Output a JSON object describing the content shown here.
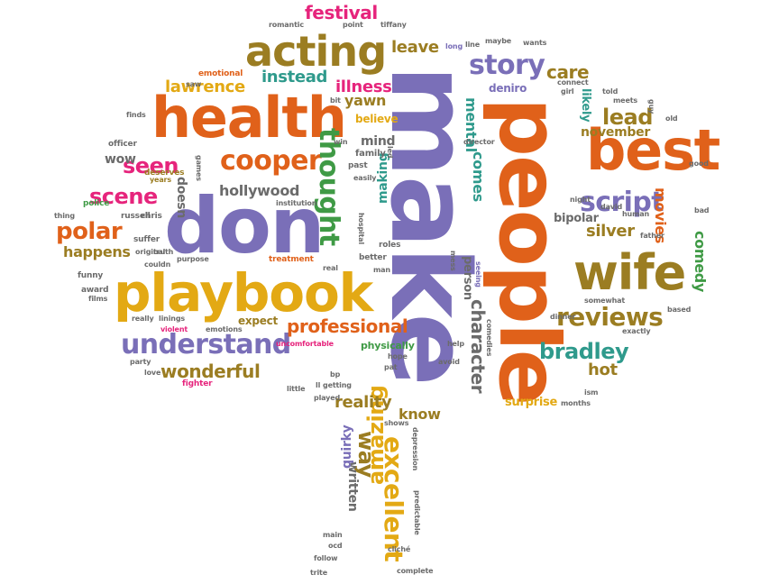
{
  "palette": {
    "orange": "#e0611a",
    "purple": "#7a6fb8",
    "gold": "#e3a914",
    "olive": "#9b7d22",
    "green": "#3f9a45",
    "pink": "#e6247c",
    "teal": "#2f9a8c",
    "gray": "#6b6b6b"
  },
  "words": [
    {
      "text": "make",
      "color": "purple"
    },
    {
      "text": "people",
      "color": "orange"
    },
    {
      "text": "don",
      "color": "purple"
    },
    {
      "text": "health",
      "color": "orange"
    },
    {
      "text": "playbook",
      "color": "gold"
    },
    {
      "text": "best",
      "color": "orange"
    },
    {
      "text": "wife",
      "color": "olive"
    },
    {
      "text": "acting",
      "color": "olive"
    },
    {
      "text": "cooper",
      "color": "orange"
    },
    {
      "text": "understand",
      "color": "purple"
    },
    {
      "text": "story",
      "color": "purple"
    },
    {
      "text": "script",
      "color": "purple"
    },
    {
      "text": "reviews",
      "color": "olive"
    },
    {
      "text": "thought",
      "color": "green"
    },
    {
      "text": "character",
      "color": "gray"
    },
    {
      "text": "polar",
      "color": "orange"
    },
    {
      "text": "seen",
      "color": "pink"
    },
    {
      "text": "scene",
      "color": "pink"
    },
    {
      "text": "wonderful",
      "color": "olive"
    },
    {
      "text": "professional",
      "color": "orange"
    },
    {
      "text": "bradley",
      "color": "teal"
    },
    {
      "text": "excellent",
      "color": "gold"
    },
    {
      "text": "amazing",
      "color": "gold"
    },
    {
      "text": "way",
      "color": "olive"
    },
    {
      "text": "lead",
      "color": "olive"
    },
    {
      "text": "festival",
      "color": "pink"
    },
    {
      "text": "instead",
      "color": "teal"
    },
    {
      "text": "lawrence",
      "color": "gold"
    },
    {
      "text": "illness",
      "color": "pink"
    },
    {
      "text": "leave",
      "color": "olive"
    },
    {
      "text": "care",
      "color": "olive"
    },
    {
      "text": "hollywood",
      "color": "gray"
    },
    {
      "text": "happens",
      "color": "olive"
    },
    {
      "text": "reality",
      "color": "olive"
    },
    {
      "text": "silver",
      "color": "olive"
    },
    {
      "text": "hot",
      "color": "olive"
    },
    {
      "text": "mental",
      "color": "teal"
    },
    {
      "text": "know",
      "color": "olive"
    },
    {
      "text": "movies",
      "color": "orange"
    },
    {
      "text": "comedy",
      "color": "green"
    },
    {
      "text": "november",
      "color": "olive"
    },
    {
      "text": "mind",
      "color": "gray"
    },
    {
      "text": "yawn",
      "color": "olive"
    },
    {
      "text": "comes",
      "color": "teal"
    },
    {
      "text": "making",
      "color": "teal"
    },
    {
      "text": "doesn",
      "color": "gray"
    },
    {
      "text": "written",
      "color": "gray"
    },
    {
      "text": "quirky",
      "color": "purple"
    },
    {
      "text": "person",
      "color": "gray"
    },
    {
      "text": "surprise",
      "color": "gold"
    },
    {
      "text": "likely",
      "color": "teal"
    },
    {
      "text": "bipolar",
      "color": "gray"
    },
    {
      "text": "wow",
      "color": "gray"
    },
    {
      "text": "believe",
      "color": "gold"
    },
    {
      "text": "deniro",
      "color": "purple"
    },
    {
      "text": "expect",
      "color": "olive"
    },
    {
      "text": "physically",
      "color": "green"
    },
    {
      "text": "emotional",
      "color": "orange"
    },
    {
      "text": "officer",
      "color": "gray"
    },
    {
      "text": "finds",
      "color": "gray"
    },
    {
      "text": "police",
      "color": "green"
    },
    {
      "text": "deserves",
      "color": "olive"
    },
    {
      "text": "years",
      "color": "olive"
    },
    {
      "text": "russell",
      "color": "gray"
    },
    {
      "text": "chris",
      "color": "gray"
    },
    {
      "text": "thing",
      "color": "gray"
    },
    {
      "text": "suffer",
      "color": "gray"
    },
    {
      "text": "original",
      "color": "gray"
    },
    {
      "text": "truth",
      "color": "gray"
    },
    {
      "text": "funny",
      "color": "gray"
    },
    {
      "text": "purpose",
      "color": "gray"
    },
    {
      "text": "award",
      "color": "gray"
    },
    {
      "text": "films",
      "color": "gray"
    },
    {
      "text": "couldn",
      "color": "gray"
    },
    {
      "text": "really",
      "color": "gray"
    },
    {
      "text": "linings",
      "color": "gray"
    },
    {
      "text": "emotions",
      "color": "gray"
    },
    {
      "text": "violent",
      "color": "pink"
    },
    {
      "text": "party",
      "color": "gray"
    },
    {
      "text": "love",
      "color": "gray"
    },
    {
      "text": "fighter",
      "color": "pink"
    },
    {
      "text": "romantic",
      "color": "gray"
    },
    {
      "text": "point",
      "color": "gray"
    },
    {
      "text": "tiffany",
      "color": "gray"
    },
    {
      "text": "long",
      "color": "purple"
    },
    {
      "text": "line",
      "color": "gray"
    },
    {
      "text": "maybe",
      "color": "gray"
    },
    {
      "text": "wants",
      "color": "gray"
    },
    {
      "text": "saw",
      "color": "gray"
    },
    {
      "text": "bit",
      "color": "gray"
    },
    {
      "text": "win",
      "color": "gray"
    },
    {
      "text": "games",
      "color": "gray"
    },
    {
      "text": "family",
      "color": "gray"
    },
    {
      "text": "led",
      "color": "gray"
    },
    {
      "text": "past",
      "color": "gray"
    },
    {
      "text": "easily",
      "color": "gray"
    },
    {
      "text": "institution",
      "color": "gray"
    },
    {
      "text": "treatment",
      "color": "orange"
    },
    {
      "text": "real",
      "color": "gray"
    },
    {
      "text": "roles",
      "color": "gray"
    },
    {
      "text": "better",
      "color": "gray"
    },
    {
      "text": "man",
      "color": "gray"
    },
    {
      "text": "hospital",
      "color": "gray"
    },
    {
      "text": "mess",
      "color": "gray"
    },
    {
      "text": "seeing",
      "color": "purple"
    },
    {
      "text": "director",
      "color": "gray"
    },
    {
      "text": "connect",
      "color": "gray"
    },
    {
      "text": "girl",
      "color": "gray"
    },
    {
      "text": "told",
      "color": "gray"
    },
    {
      "text": "meets",
      "color": "gray"
    },
    {
      "text": "guy",
      "color": "gray"
    },
    {
      "text": "old",
      "color": "gray"
    },
    {
      "text": "good",
      "color": "gray"
    },
    {
      "text": "night",
      "color": "gray"
    },
    {
      "text": "david",
      "color": "gray"
    },
    {
      "text": "human",
      "color": "gray"
    },
    {
      "text": "bad",
      "color": "gray"
    },
    {
      "text": "father",
      "color": "gray"
    },
    {
      "text": "somewhat",
      "color": "gray"
    },
    {
      "text": "based",
      "color": "gray"
    },
    {
      "text": "dinner",
      "color": "gray"
    },
    {
      "text": "exactly",
      "color": "gray"
    },
    {
      "text": "comedies",
      "color": "gray"
    },
    {
      "text": "help",
      "color": "gray"
    },
    {
      "text": "avoid",
      "color": "gray"
    },
    {
      "text": "hope",
      "color": "gray"
    },
    {
      "text": "pat",
      "color": "gray"
    },
    {
      "text": "uncomfortable",
      "color": "pink"
    },
    {
      "text": "bp",
      "color": "gray"
    },
    {
      "text": "ll",
      "color": "gray"
    },
    {
      "text": "getting",
      "color": "gray"
    },
    {
      "text": "little",
      "color": "gray"
    },
    {
      "text": "played",
      "color": "gray"
    },
    {
      "text": "shows",
      "color": "gray"
    },
    {
      "text": "depression",
      "color": "gray"
    },
    {
      "text": "ism",
      "color": "gray"
    },
    {
      "text": "months",
      "color": "gray"
    },
    {
      "text": "predictable",
      "color": "gray"
    },
    {
      "text": "main",
      "color": "gray"
    },
    {
      "text": "ocd",
      "color": "gray"
    },
    {
      "text": "follow",
      "color": "gray"
    },
    {
      "text": "trite",
      "color": "gray"
    },
    {
      "text": "complete",
      "color": "gray"
    },
    {
      "text": "cliché",
      "color": "gray"
    }
  ]
}
